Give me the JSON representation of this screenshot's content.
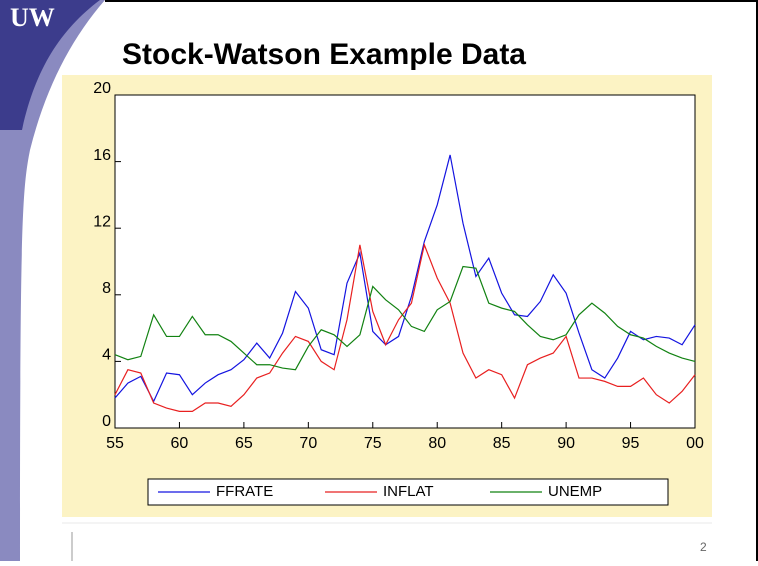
{
  "logo": "UW",
  "slide_number": "2",
  "chart_data": {
    "type": "line",
    "title": "Stock-Watson Example Data",
    "x": [
      1955,
      1956,
      1957,
      1958,
      1959,
      1960,
      1961,
      1962,
      1963,
      1964,
      1965,
      1966,
      1967,
      1968,
      1969,
      1970,
      1971,
      1972,
      1973,
      1974,
      1975,
      1976,
      1977,
      1978,
      1979,
      1980,
      1981,
      1982,
      1983,
      1984,
      1985,
      1986,
      1987,
      1988,
      1989,
      1990,
      1991,
      1992,
      1993,
      1994,
      1995,
      1996,
      1997,
      1998,
      1999,
      2000
    ],
    "series": [
      {
        "name": "FFRATE",
        "color": "#1414e0",
        "values": [
          1.8,
          2.7,
          3.1,
          1.6,
          3.3,
          3.2,
          2.0,
          2.7,
          3.2,
          3.5,
          4.1,
          5.1,
          4.2,
          5.7,
          8.2,
          7.2,
          4.7,
          4.4,
          8.7,
          10.5,
          5.8,
          5.0,
          5.5,
          7.9,
          11.2,
          13.4,
          16.4,
          12.3,
          9.1,
          10.2,
          8.1,
          6.8,
          6.7,
          7.6,
          9.2,
          8.1,
          5.7,
          3.5,
          3.0,
          4.2,
          5.8,
          5.3,
          5.5,
          5.4,
          5.0,
          6.2
        ]
      },
      {
        "name": "INFLAT",
        "color": "#e82020",
        "values": [
          2.0,
          3.5,
          3.3,
          1.5,
          1.2,
          1.0,
          1.0,
          1.5,
          1.5,
          1.3,
          2.0,
          3.0,
          3.3,
          4.5,
          5.5,
          5.2,
          4.0,
          3.5,
          6.5,
          11.0,
          7.0,
          5.0,
          6.5,
          7.5,
          11.0,
          9.0,
          7.5,
          4.5,
          3.0,
          3.5,
          3.2,
          1.8,
          3.8,
          4.2,
          4.5,
          5.5,
          3.0,
          3.0,
          2.8,
          2.5,
          2.5,
          3.0,
          2.0,
          1.5,
          2.2,
          3.2
        ]
      },
      {
        "name": "UNEMP",
        "color": "#128212",
        "values": [
          4.4,
          4.1,
          4.3,
          6.8,
          5.5,
          5.5,
          6.7,
          5.6,
          5.6,
          5.2,
          4.5,
          3.8,
          3.8,
          3.6,
          3.5,
          4.9,
          5.9,
          5.6,
          4.9,
          5.6,
          8.5,
          7.7,
          7.1,
          6.1,
          5.8,
          7.1,
          7.6,
          9.7,
          9.6,
          7.5,
          7.2,
          7.0,
          6.2,
          5.5,
          5.3,
          5.6,
          6.8,
          7.5,
          6.9,
          6.1,
          5.6,
          5.4,
          4.9,
          4.5,
          4.2,
          4.0
        ]
      }
    ],
    "xlim": [
      1955,
      2000
    ],
    "xticks": [
      {
        "value": 1955,
        "label": "55"
      },
      {
        "value": 1960,
        "label": "60"
      },
      {
        "value": 1965,
        "label": "65"
      },
      {
        "value": 1970,
        "label": "70"
      },
      {
        "value": 1975,
        "label": "75"
      },
      {
        "value": 1980,
        "label": "80"
      },
      {
        "value": 1985,
        "label": "85"
      },
      {
        "value": 1990,
        "label": "90"
      },
      {
        "value": 1995,
        "label": "95"
      },
      {
        "value": 2000,
        "label": "00"
      }
    ],
    "ylim": [
      0,
      20
    ],
    "yticks": [
      0,
      4,
      8,
      12,
      16,
      20
    ],
    "legend": "bottom"
  }
}
